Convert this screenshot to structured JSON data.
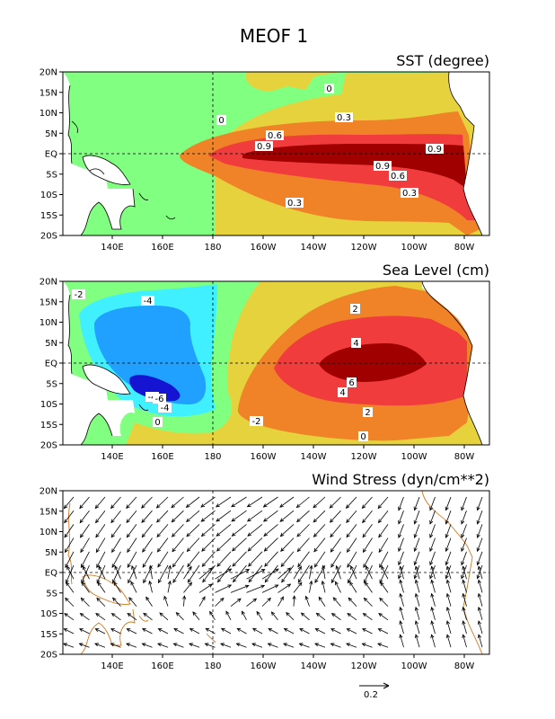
{
  "figure": {
    "title": "MEOF 1"
  },
  "axes": {
    "lat_ticks": [
      "20N",
      "15N",
      "10N",
      "5N",
      "EQ",
      "5S",
      "10S",
      "15S",
      "20S"
    ],
    "lon_ticks": [
      "140E",
      "160E",
      "180",
      "160W",
      "140W",
      "120W",
      "100W",
      "80W"
    ]
  },
  "panels": {
    "sst": {
      "title": "SST (degree)",
      "contour_labels": [
        "0",
        "0",
        "0.3",
        "0.6",
        "0.9",
        "0.9",
        "0.9",
        "0.6",
        "0.3",
        "0.3"
      ],
      "colors": {
        "neg": "#80ff80",
        "c0": "#e6d23c",
        "c1": "#f08228",
        "c2": "#f03c3c",
        "c3": "#a00000"
      }
    },
    "sea_level": {
      "title": "Sea Level (cm)",
      "contour_labels": [
        "-2",
        "-4",
        "-4",
        "-6",
        "-4",
        "0",
        "-2",
        "2",
        "4",
        "6",
        "4",
        "2",
        "0"
      ],
      "colors": {
        "c_m2": "#80ff80",
        "c_m4": "#40f0ff",
        "c_m6": "#20a0ff",
        "c_m8": "#1414d2",
        "c0": "#e6d23c",
        "c2": "#f08228",
        "c4": "#f03c3c",
        "c6": "#a00000"
      }
    },
    "wind": {
      "title": "Wind Stress (dyn/cm**2)",
      "reference_vector_label": "0.2",
      "coast_color": "#d2781e"
    }
  }
}
